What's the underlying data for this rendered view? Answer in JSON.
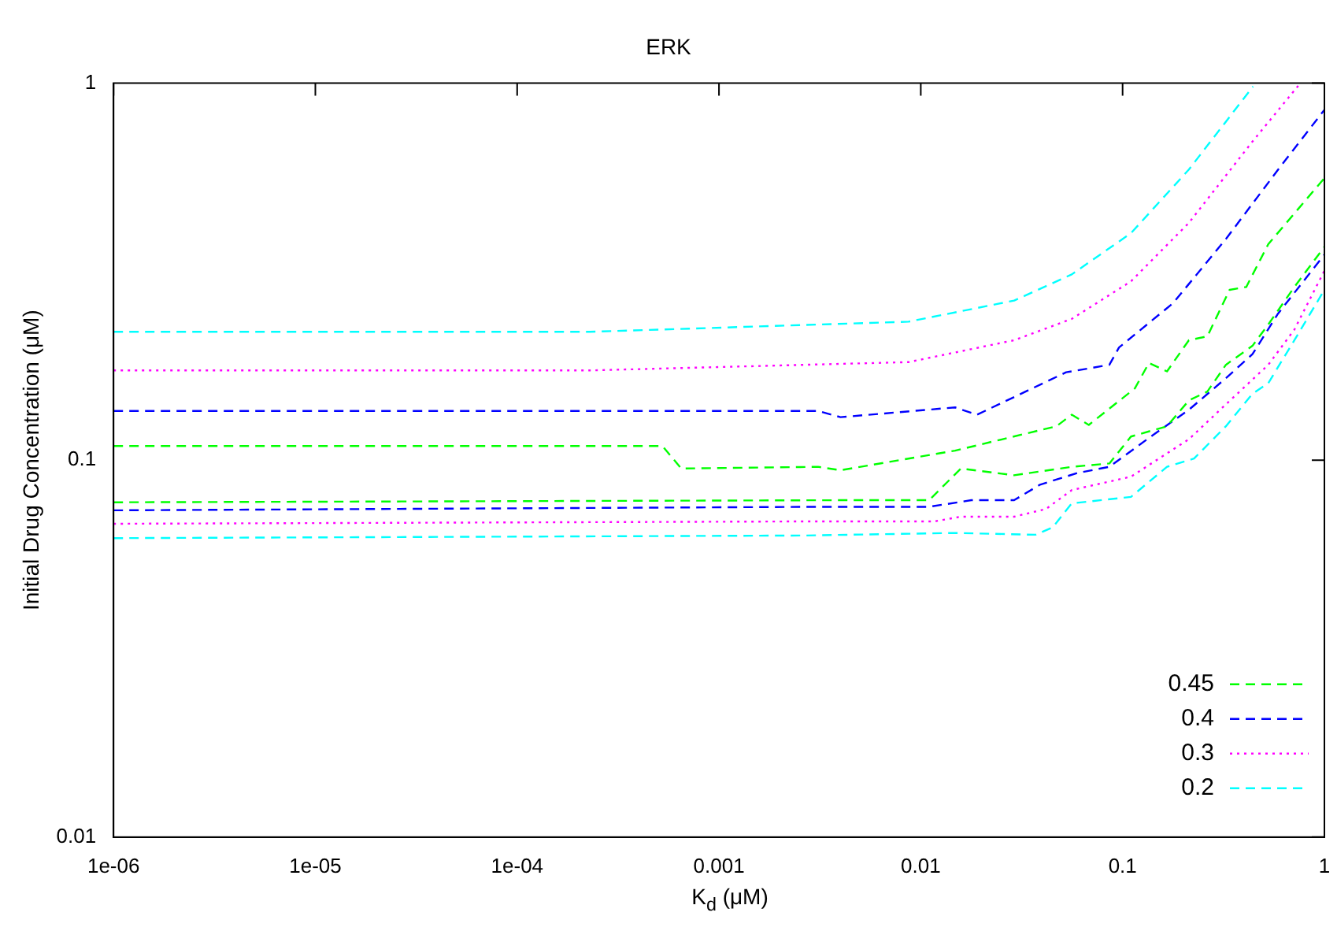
{
  "chart_data": {
    "type": "line",
    "title": "ERK",
    "xlabel": "K$_{d}$ (μM)",
    "ylabel": "Initial Drug Concentration (μM)",
    "log": "xy",
    "grid": false,
    "legend": "bottom right",
    "marker": "none",
    "xlim": [
      1e-06,
      1
    ],
    "ylim": [
      0.01,
      1
    ],
    "xticks": [
      {
        "value": 1e-06,
        "label": "1e-06"
      },
      {
        "value": 1e-05,
        "label": "1e-05"
      },
      {
        "value": 0.0001,
        "label": "1e-04"
      },
      0.001,
      0.01,
      0.1,
      1
    ],
    "yticks": [
      0.01,
      0.1,
      1
    ],
    "series": [
      {
        "name": "0.45",
        "color": "#00ff00",
        "line_style": "dashed",
        "x": [
          1e-06,
          0.004,
          0.011,
          0.0158,
          0.029,
          0.056,
          0.086,
          0.11,
          0.166,
          0.213,
          0.263,
          0.325,
          0.44,
          0.527,
          0.71,
          1
        ],
        "values": [
          0.0773,
          0.0783,
          0.0783,
          0.095,
          0.0912,
          0.096,
          0.098,
          0.1155,
          0.123,
          0.144,
          0.152,
          0.179,
          0.201,
          0.229,
          0.288,
          0.368
        ]
      },
      {
        "name": "0.4",
        "color": "#0000ff",
        "line_style": "dashed",
        "x": [
          1e-06,
          0.0031,
          0.011,
          0.0178,
          0.029,
          0.039,
          0.06,
          0.086,
          0.138,
          0.213,
          0.325,
          0.44,
          0.59,
          1
        ],
        "values": [
          0.0736,
          0.0752,
          0.0752,
          0.0783,
          0.0783,
          0.0861,
          0.0925,
          0.096,
          0.1155,
          0.136,
          0.165,
          0.191,
          0.245,
          0.351
        ]
      },
      {
        "name": "0.3",
        "color": "#ff00ff",
        "line_style": "dotted",
        "x": [
          1e-06,
          0.0031,
          0.0117,
          0.0158,
          0.029,
          0.0417,
          0.056,
          0.11,
          0.213,
          0.325,
          0.527,
          0.71,
          1
        ],
        "values": [
          0.0678,
          0.0688,
          0.0688,
          0.0708,
          0.0708,
          0.0742,
          0.0833,
          0.0904,
          0.1136,
          0.1406,
          0.179,
          0.222,
          0.318
        ]
      },
      {
        "name": "0.2",
        "color": "#00ffff",
        "line_style": "dashed",
        "x": [
          1e-06,
          0.0026,
          0.0148,
          0.037,
          0.045,
          0.056,
          0.11,
          0.166,
          0.226,
          0.325,
          0.44,
          0.527,
          0.71,
          1
        ],
        "values": [
          0.0621,
          0.0631,
          0.0641,
          0.0634,
          0.0663,
          0.0768,
          0.0799,
          0.096,
          0.101,
          0.123,
          0.15,
          0.16,
          0.208,
          0.283
        ]
      },
      {
        "color": "#00ff00",
        "line_style": "dashed",
        "x": [
          1e-06,
          0.000525,
          0.00065,
          0.0031,
          0.004,
          0.0148,
          0.047,
          0.056,
          0.068,
          0.115,
          0.135,
          0.166,
          0.213,
          0.263,
          0.339,
          0.41,
          0.527,
          1
        ],
        "values": [
          0.109,
          0.109,
          0.095,
          0.096,
          0.094,
          0.106,
          0.123,
          0.132,
          0.124,
          0.155,
          0.181,
          0.172,
          0.208,
          0.213,
          0.283,
          0.288,
          0.374,
          0.56
        ]
      },
      {
        "color": "#0000ff",
        "line_style": "dashed",
        "x": [
          1e-06,
          0.0031,
          0.004,
          0.0148,
          0.019,
          0.0525,
          0.086,
          0.096,
          0.178,
          0.325,
          0.59,
          1
        ],
        "values": [
          0.135,
          0.135,
          0.13,
          0.138,
          0.132,
          0.171,
          0.179,
          0.199,
          0.261,
          0.386,
          0.59,
          0.85
        ]
      },
      {
        "color": "#ff00ff",
        "line_style": "dotted",
        "x": [
          1e-06,
          0.000229,
          0.0087,
          0.029,
          0.056,
          0.11,
          0.213,
          0.44,
          0.76
        ],
        "values": [
          0.173,
          0.173,
          0.182,
          0.208,
          0.237,
          0.298,
          0.426,
          0.7,
          1
        ]
      },
      {
        "color": "#00ffff",
        "line_style": "dashed",
        "x": [
          1e-06,
          0.000229,
          0.0087,
          0.029,
          0.056,
          0.11,
          0.213,
          0.443
        ],
        "values": [
          0.219,
          0.219,
          0.233,
          0.265,
          0.311,
          0.4,
          0.59,
          0.98
        ]
      }
    ]
  }
}
